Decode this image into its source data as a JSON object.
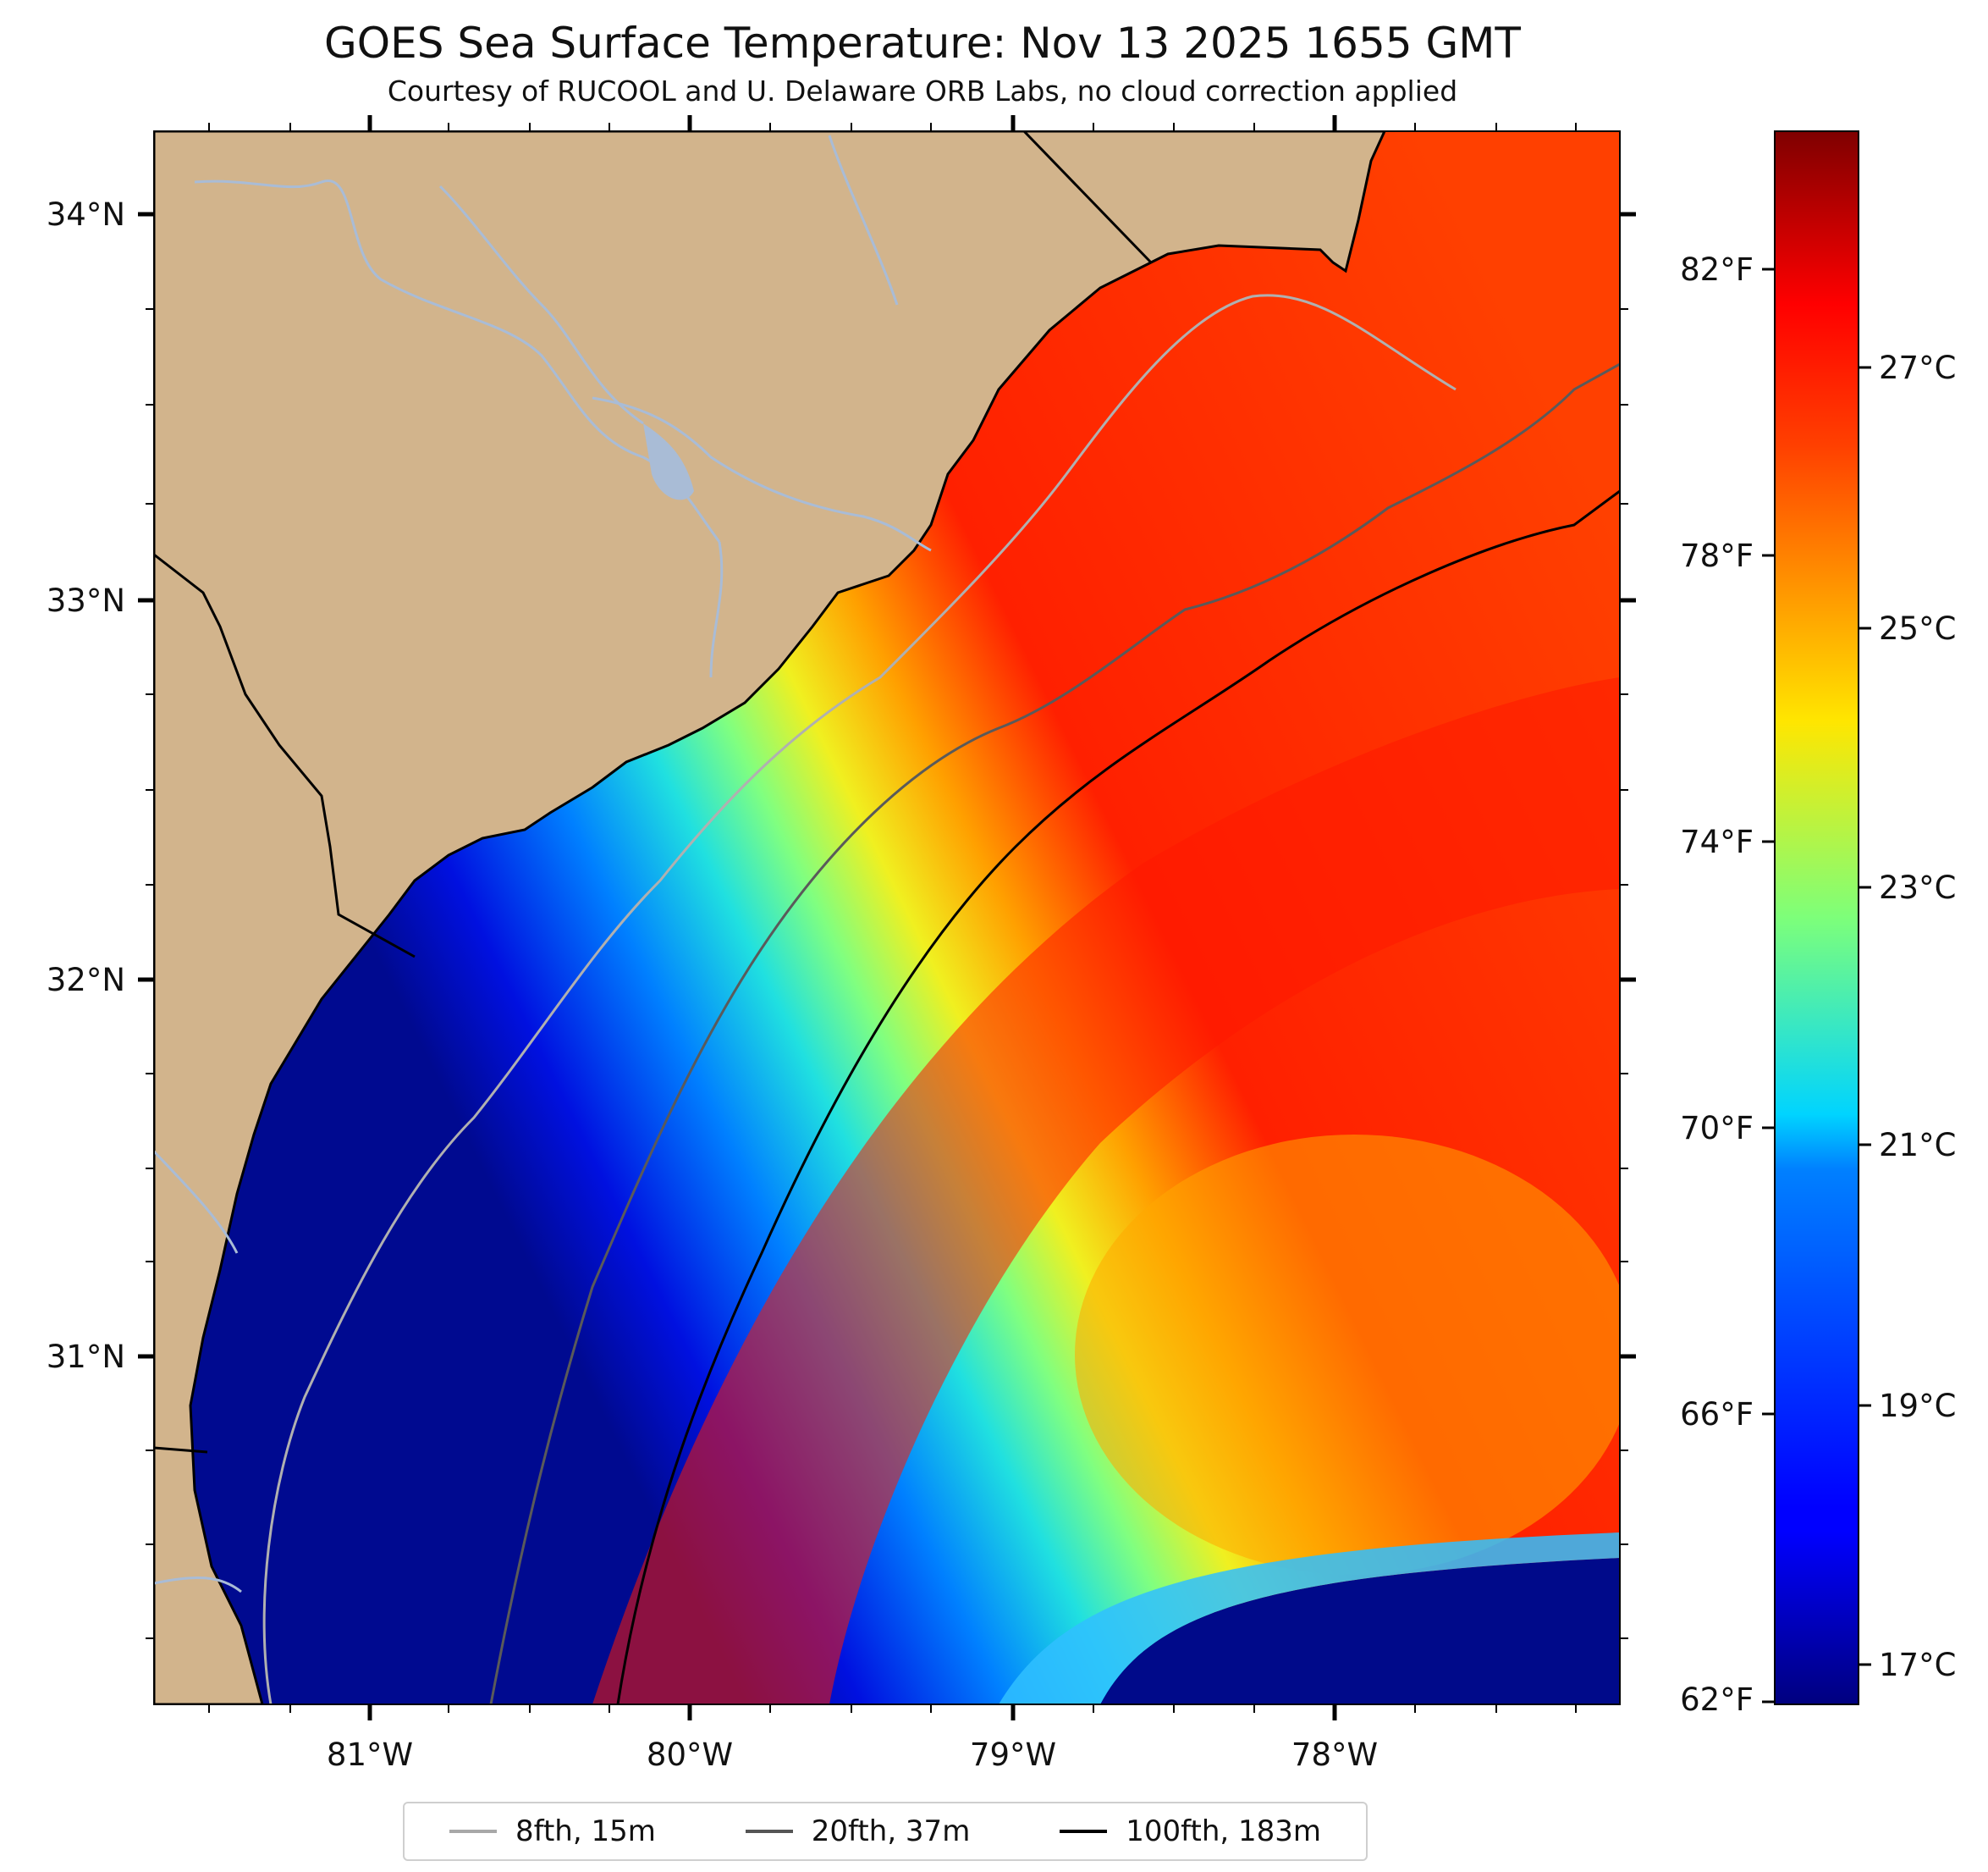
{
  "title": "GOES Sea Surface Temperature: Nov 13 2025 1655 GMT",
  "subtitle": "Courtesy of RUCOOL and U. Delaware ORB Labs, no cloud correction applied",
  "map": {
    "lon_ticks": [
      "81°W",
      "80°W",
      "79°W",
      "78°W"
    ],
    "lat_ticks": [
      "34°N",
      "33°N",
      "32°N",
      "31°N"
    ],
    "land_color": "#d2b48c",
    "river_color": "#a9bcd6"
  },
  "colorbar": {
    "colormap": "jet",
    "fahrenheit_ticks": [
      "82°F",
      "78°F",
      "74°F",
      "70°F",
      "66°F",
      "62°F"
    ],
    "celsius_ticks": [
      "27°C",
      "25°C",
      "23°C",
      "21°C",
      "19°C",
      "17°C"
    ]
  },
  "legend": {
    "items": [
      {
        "label": "8fth, 15m",
        "color": "#a8a8a8"
      },
      {
        "label": "20fth, 37m",
        "color": "#555555"
      },
      {
        "label": "100fth, 183m",
        "color": "#000000"
      }
    ]
  }
}
